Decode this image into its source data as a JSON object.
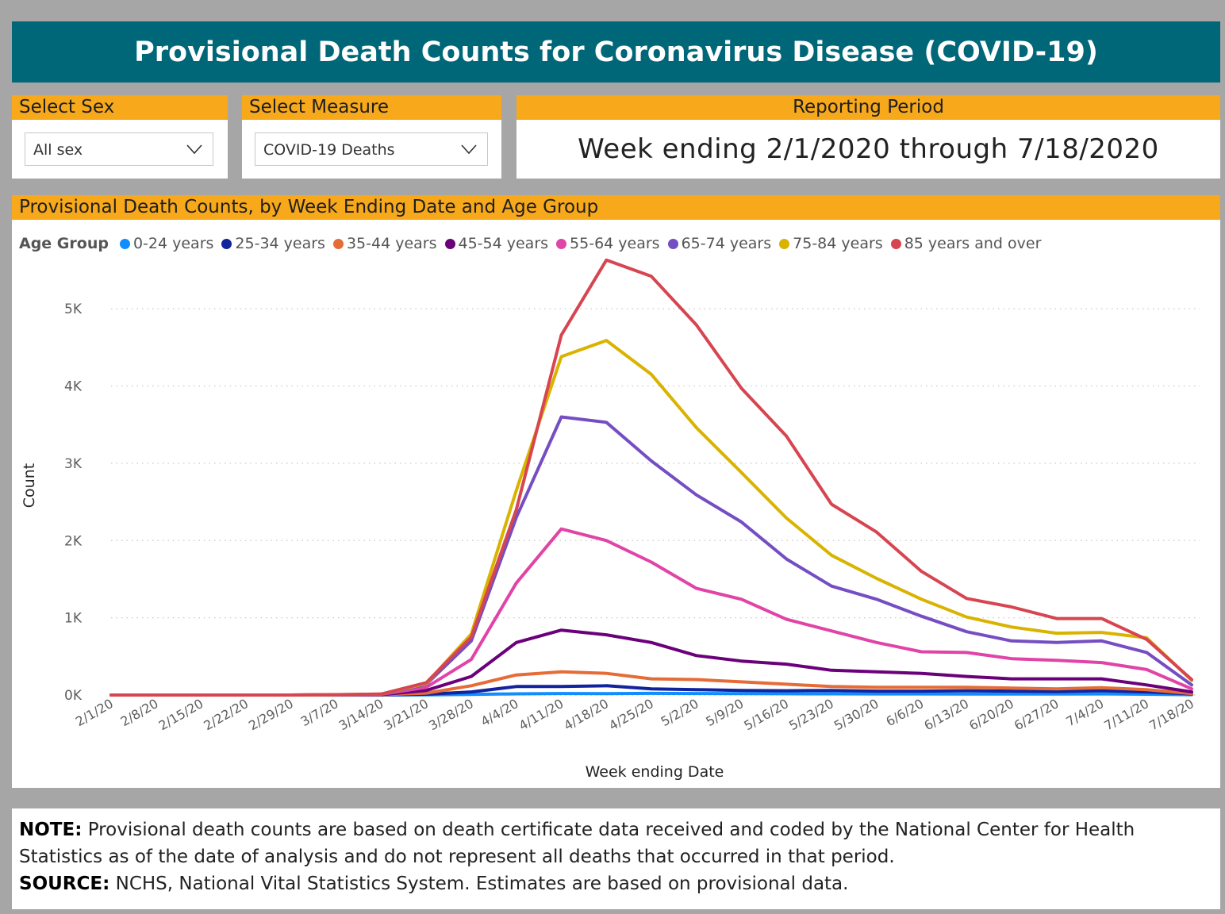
{
  "header": {
    "title": "Provisional Death Counts for Coronavirus Disease (COVID-19)"
  },
  "filters": {
    "sex": {
      "label": "Select Sex",
      "value": "All sex"
    },
    "measure": {
      "label": "Select Measure",
      "value": "COVID-19 Deaths"
    },
    "period": {
      "label": "Reporting Period",
      "value": "Week ending 2/1/2020 through 7/18/2020"
    }
  },
  "colors": {
    "title_bg": "#006779",
    "header_bg": "#f7a81b",
    "series": [
      "#118dff",
      "#12239e",
      "#e66c37",
      "#6b007b",
      "#e044a7",
      "#744ec2",
      "#d9b300",
      "#d64550"
    ]
  },
  "chart_data": {
    "type": "line",
    "title": "Provisional Death Counts, by Week Ending Date and Age Group",
    "legend_title": "Age Group",
    "xlabel": "Week ending Date",
    "ylabel": "Count",
    "ylim": [
      0,
      5700
    ],
    "yticks": [
      0,
      1000,
      2000,
      3000,
      4000,
      5000
    ],
    "ytick_labels": [
      "0K",
      "1K",
      "2K",
      "3K",
      "4K",
      "5K"
    ],
    "grid": true,
    "legend_position": "top-left",
    "categories": [
      "2/1/20",
      "2/8/20",
      "2/15/20",
      "2/22/20",
      "2/29/20",
      "3/7/20",
      "3/14/20",
      "3/21/20",
      "3/28/20",
      "4/4/20",
      "4/11/20",
      "4/18/20",
      "4/25/20",
      "5/2/20",
      "5/9/20",
      "5/16/20",
      "5/23/20",
      "5/30/20",
      "6/6/20",
      "6/13/20",
      "6/20/20",
      "6/27/20",
      "7/4/20",
      "7/11/20",
      "7/18/20"
    ],
    "series": [
      {
        "name": "0-24 years",
        "values": [
          0,
          0,
          0,
          0,
          0,
          0,
          0,
          2,
          8,
          15,
          20,
          18,
          22,
          20,
          18,
          16,
          15,
          14,
          14,
          13,
          12,
          12,
          14,
          10,
          4
        ]
      },
      {
        "name": "25-34 years",
        "values": [
          0,
          0,
          0,
          0,
          0,
          0,
          2,
          10,
          40,
          110,
          110,
          120,
          80,
          70,
          60,
          55,
          60,
          50,
          50,
          55,
          50,
          45,
          55,
          40,
          15
        ]
      },
      {
        "name": "35-44 years",
        "values": [
          0,
          0,
          0,
          0,
          0,
          1,
          3,
          25,
          120,
          260,
          300,
          280,
          210,
          200,
          170,
          140,
          110,
          100,
          100,
          100,
          90,
          80,
          95,
          70,
          20
        ]
      },
      {
        "name": "45-54 years",
        "values": [
          0,
          0,
          0,
          0,
          0,
          2,
          5,
          60,
          240,
          680,
          840,
          780,
          680,
          510,
          440,
          400,
          320,
          300,
          280,
          240,
          210,
          210,
          210,
          130,
          40
        ]
      },
      {
        "name": "55-64 years",
        "values": [
          0,
          0,
          0,
          0,
          0,
          3,
          8,
          100,
          460,
          1450,
          2150,
          2000,
          1720,
          1380,
          1240,
          980,
          830,
          680,
          560,
          550,
          470,
          450,
          420,
          330,
          80
        ]
      },
      {
        "name": "65-74 years",
        "values": [
          0,
          0,
          0,
          0,
          0,
          3,
          10,
          140,
          700,
          2300,
          3600,
          3530,
          3030,
          2590,
          2240,
          1760,
          1410,
          1240,
          1020,
          820,
          700,
          680,
          700,
          550,
          130
        ]
      },
      {
        "name": "75-84 years",
        "values": [
          0,
          0,
          0,
          0,
          0,
          4,
          12,
          150,
          790,
          2650,
          4380,
          4590,
          4150,
          3460,
          2880,
          2290,
          1810,
          1510,
          1240,
          1010,
          880,
          800,
          810,
          740,
          190
        ]
      },
      {
        "name": "85 years and over",
        "values": [
          0,
          0,
          0,
          0,
          0,
          5,
          12,
          160,
          750,
          2400,
          4660,
          5630,
          5420,
          4790,
          3970,
          3350,
          2470,
          2110,
          1600,
          1250,
          1140,
          990,
          990,
          720,
          200
        ]
      }
    ]
  },
  "note": {
    "note_label": "NOTE:",
    "note_text": " Provisional death counts are based on death certificate data received and coded by the National Center for Health Statistics as of the date of analysis and do not represent all deaths that occurred in that period.",
    "source_label": "SOURCE:",
    "source_text": " NCHS, National Vital Statistics System. Estimates are based on provisional data."
  }
}
